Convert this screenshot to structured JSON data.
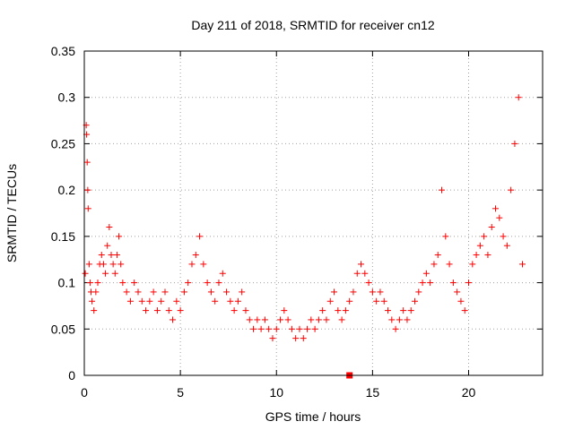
{
  "chart_data": {
    "type": "scatter",
    "title": "Day 211 of 2018, SRMTID for receiver cn12",
    "xlabel": "GPS time / hours",
    "ylabel": "SRMTID / TECUs",
    "xlim": [
      0,
      23.85
    ],
    "ylim": [
      0,
      0.35
    ],
    "xticks": [
      0,
      5,
      10,
      15,
      20
    ],
    "xtick_labels": [
      "0",
      "5",
      "10",
      "15",
      "20"
    ],
    "yticks": [
      0,
      0.05,
      0.1,
      0.15,
      0.2,
      0.25,
      0.3,
      0.35
    ],
    "ytick_labels": [
      "0",
      "0.05",
      "0.1",
      "0.15",
      "0.2",
      "0.25",
      "0.3",
      "0.35"
    ],
    "grid": true,
    "marker": "plus",
    "marker_color": "#ff0000",
    "special_marker": {
      "x": 13.8,
      "y": 0.0,
      "shape": "square",
      "color": "#ff0000"
    },
    "series": [
      {
        "name": "SRMTID",
        "x": [
          0.05,
          0.1,
          0.12,
          0.15,
          0.18,
          0.2,
          0.25,
          0.3,
          0.35,
          0.4,
          0.5,
          0.6,
          0.7,
          0.8,
          0.9,
          1.0,
          1.1,
          1.2,
          1.3,
          1.4,
          1.5,
          1.6,
          1.7,
          1.8,
          1.9,
          2.0,
          2.2,
          2.4,
          2.6,
          2.8,
          3.0,
          3.2,
          3.4,
          3.6,
          3.8,
          4.0,
          4.2,
          4.4,
          4.6,
          4.8,
          5.0,
          5.2,
          5.4,
          5.6,
          5.8,
          6.0,
          6.2,
          6.4,
          6.6,
          6.8,
          7.0,
          7.2,
          7.4,
          7.6,
          7.8,
          8.0,
          8.2,
          8.4,
          8.6,
          8.8,
          9.0,
          9.2,
          9.4,
          9.6,
          9.8,
          10.0,
          10.2,
          10.4,
          10.6,
          10.8,
          11.0,
          11.2,
          11.4,
          11.6,
          11.8,
          12.0,
          12.2,
          12.4,
          12.6,
          12.8,
          13.0,
          13.2,
          13.4,
          13.6,
          13.8,
          14.0,
          14.2,
          14.4,
          14.6,
          14.8,
          15.0,
          15.2,
          15.4,
          15.6,
          15.8,
          16.0,
          16.2,
          16.4,
          16.6,
          16.8,
          17.0,
          17.2,
          17.4,
          17.6,
          17.8,
          18.0,
          18.2,
          18.4,
          18.6,
          18.8,
          19.0,
          19.2,
          19.4,
          19.6,
          19.8,
          20.0,
          20.2,
          20.4,
          20.6,
          20.8,
          21.0,
          21.2,
          21.4,
          21.6,
          21.8,
          22.0,
          22.2,
          22.4,
          22.6,
          22.8
        ],
        "y": [
          0.11,
          0.27,
          0.26,
          0.23,
          0.2,
          0.18,
          0.12,
          0.1,
          0.09,
          0.08,
          0.07,
          0.09,
          0.1,
          0.12,
          0.13,
          0.12,
          0.11,
          0.14,
          0.16,
          0.13,
          0.12,
          0.11,
          0.13,
          0.15,
          0.12,
          0.1,
          0.09,
          0.08,
          0.1,
          0.09,
          0.08,
          0.07,
          0.08,
          0.09,
          0.07,
          0.08,
          0.09,
          0.07,
          0.06,
          0.08,
          0.07,
          0.09,
          0.1,
          0.12,
          0.13,
          0.15,
          0.12,
          0.1,
          0.09,
          0.08,
          0.1,
          0.11,
          0.09,
          0.08,
          0.07,
          0.08,
          0.09,
          0.07,
          0.06,
          0.05,
          0.06,
          0.05,
          0.06,
          0.05,
          0.04,
          0.05,
          0.06,
          0.07,
          0.06,
          0.05,
          0.04,
          0.05,
          0.04,
          0.05,
          0.06,
          0.05,
          0.06,
          0.07,
          0.06,
          0.08,
          0.09,
          0.07,
          0.06,
          0.07,
          0.08,
          0.09,
          0.11,
          0.12,
          0.11,
          0.1,
          0.09,
          0.08,
          0.09,
          0.08,
          0.07,
          0.06,
          0.05,
          0.06,
          0.07,
          0.06,
          0.07,
          0.08,
          0.09,
          0.1,
          0.11,
          0.1,
          0.12,
          0.13,
          0.2,
          0.15,
          0.12,
          0.1,
          0.09,
          0.08,
          0.07,
          0.1,
          0.12,
          0.13,
          0.14,
          0.15,
          0.13,
          0.16,
          0.18,
          0.17,
          0.15,
          0.14,
          0.2,
          0.25,
          0.3,
          0.12
        ]
      }
    ]
  }
}
